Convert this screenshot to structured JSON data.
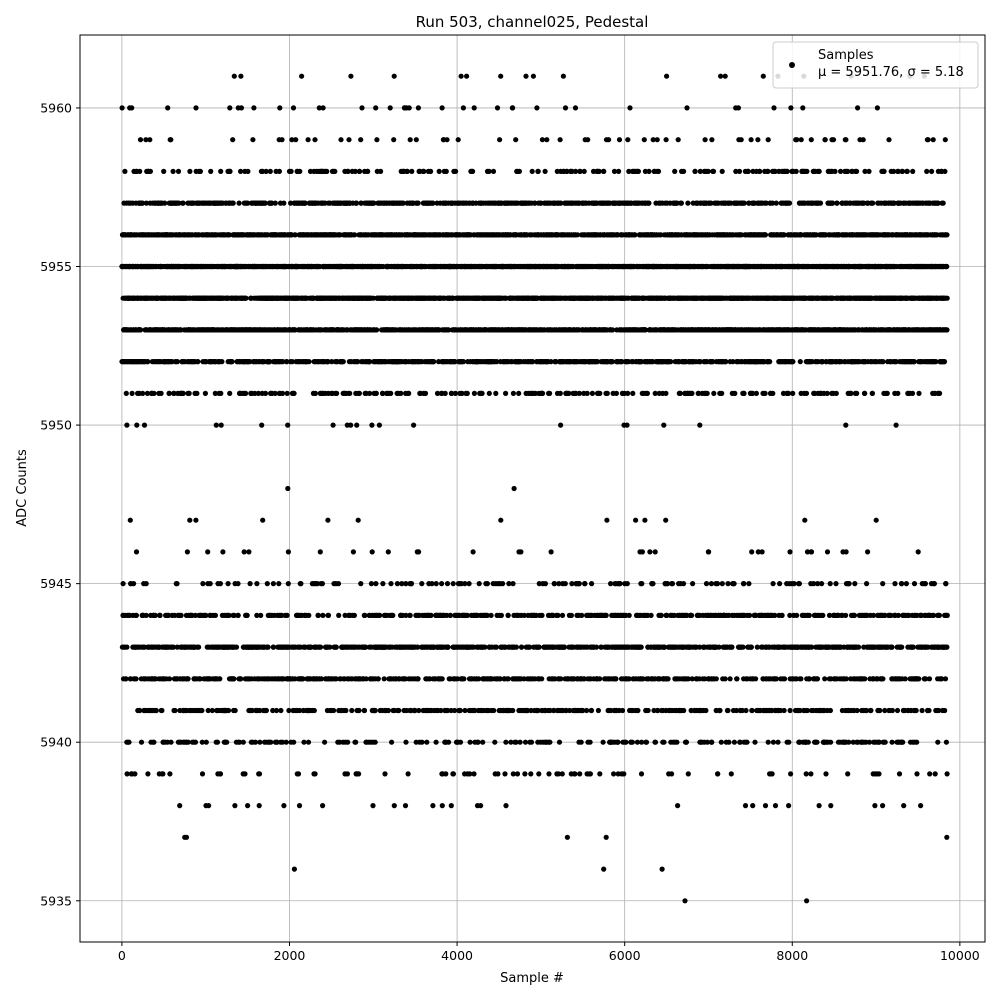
{
  "chart_data": {
    "type": "scatter",
    "title": "Run 503, channel025, Pedestal",
    "xlabel": "Sample #",
    "ylabel": "ADC Counts",
    "xlim": [
      -500,
      10300
    ],
    "ylim": [
      5933.7,
      5962.3
    ],
    "xticks": [
      0,
      2000,
      4000,
      6000,
      8000,
      10000
    ],
    "yticks": [
      5935,
      5940,
      5945,
      5950,
      5955,
      5960
    ],
    "grid": true,
    "legend": {
      "placement": "top-right",
      "label": "Samples",
      "stats": "μ = 5951.76, σ = 5.18"
    },
    "marker_color": "#000000",
    "series": [
      {
        "name": "Samples",
        "n_points": 10000,
        "x_range": [
          0,
          9850
        ],
        "level_weights": [
          [
            5935,
            1
          ],
          [
            5936,
            1
          ],
          [
            5937,
            3
          ],
          [
            5938,
            14
          ],
          [
            5939,
            45
          ],
          [
            5940,
            120
          ],
          [
            5941,
            220
          ],
          [
            5942,
            330
          ],
          [
            5943,
            420
          ],
          [
            5944,
            260
          ],
          [
            5945,
            90
          ],
          [
            5946,
            20
          ],
          [
            5947,
            5
          ],
          [
            5948,
            1
          ],
          [
            5950,
            12
          ],
          [
            5951,
            150
          ],
          [
            5952,
            420
          ],
          [
            5953,
            780
          ],
          [
            5954,
            950
          ],
          [
            5955,
            980
          ],
          [
            5956,
            700
          ],
          [
            5957,
            360
          ],
          [
            5958,
            120
          ],
          [
            5959,
            45
          ],
          [
            5960,
            22
          ],
          [
            5961,
            10
          ]
        ],
        "outliers": [
          {
            "x": 6720,
            "y": 5935
          },
          {
            "x": 5750,
            "y": 5936
          },
          {
            "x": 750,
            "y": 5937
          },
          {
            "x": 5780,
            "y": 5937
          },
          {
            "x": 1980,
            "y": 5948
          },
          {
            "x": 100,
            "y": 5947
          },
          {
            "x": 1680,
            "y": 5947
          },
          {
            "x": 2820,
            "y": 5947
          },
          {
            "x": 6130,
            "y": 5947
          },
          {
            "x": 8150,
            "y": 5947
          },
          {
            "x": 1420,
            "y": 5961
          },
          {
            "x": 3250,
            "y": 5961
          },
          {
            "x": 4520,
            "y": 5961
          },
          {
            "x": 6500,
            "y": 5961
          },
          {
            "x": 7200,
            "y": 5961
          }
        ]
      }
    ]
  }
}
